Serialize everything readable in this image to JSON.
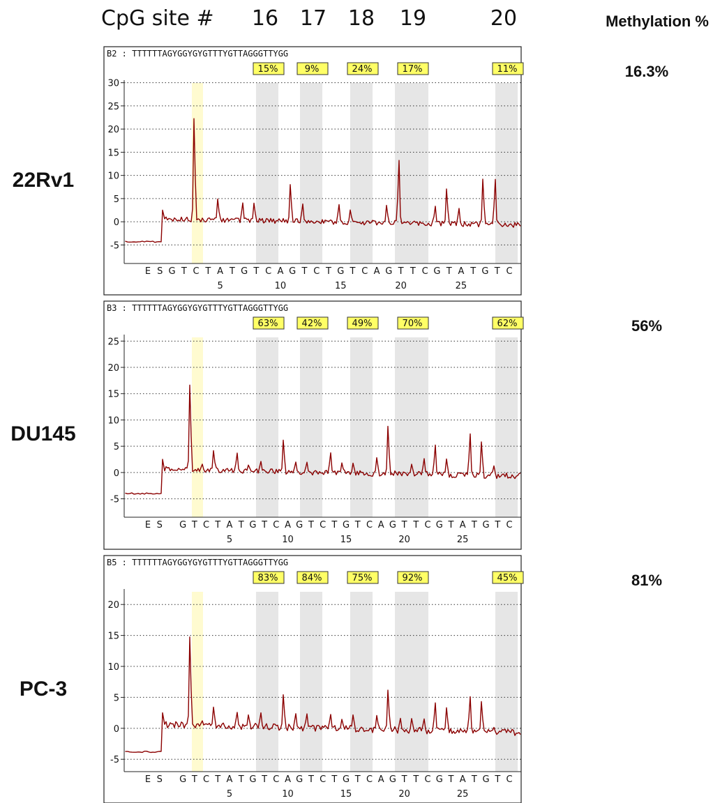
{
  "header": {
    "cpg_label": "CpG site  #",
    "sites": [
      "16",
      "17",
      "18",
      "19",
      "20"
    ],
    "methylation_title": "Methylation %"
  },
  "colors": {
    "trace": "#8b0000",
    "shade": "#e6e6e6",
    "highlight": "#fffbd0",
    "badge": "#ffff66"
  },
  "chart_data": [
    {
      "type": "line",
      "cell_line": "22Rv1",
      "well": "B2",
      "sequence": "TTTTTTAGYGGYGYGTTTYGTTAGGGTTYGG",
      "methylation_overall": "16.3%",
      "site_percents": [
        "15%",
        "9%",
        "24%",
        "17%",
        "11%"
      ],
      "ylim": [
        -9,
        31
      ],
      "yticks": [
        -5,
        0,
        5,
        10,
        15,
        20,
        25,
        30
      ],
      "dispensation": [
        "E",
        "S",
        "G",
        "T",
        "C",
        "T",
        "A",
        "T",
        "G",
        "T",
        "C",
        "A",
        "G",
        "T",
        "C",
        "T",
        "G",
        "T",
        "C",
        "A",
        "G",
        "T",
        "T",
        "C",
        "G",
        "T",
        "A",
        "T",
        "G",
        "T",
        "C"
      ],
      "position_ticks": [
        "5",
        "10",
        "15",
        "20",
        "25"
      ],
      "baseline_start": -4.3,
      "peaks": [
        0,
        2,
        0,
        0,
        29,
        0,
        6,
        0,
        5,
        5,
        0,
        0,
        10.5,
        5,
        0,
        0,
        5,
        3.5,
        0,
        0,
        5,
        18,
        0,
        0,
        5,
        10,
        4.5,
        0,
        13,
        13,
        0
      ]
    },
    {
      "type": "line",
      "cell_line": "DU145",
      "well": "B3",
      "sequence": "TTTTTTAGYGGYGYGTTTYGTTAGGGTTYGG",
      "methylation_overall": "56%",
      "site_percents": [
        "63%",
        "42%",
        "49%",
        "70%",
        "62%"
      ],
      "ylim": [
        -8.5,
        26.5
      ],
      "yticks": [
        -5,
        0,
        5,
        10,
        15,
        20,
        25
      ],
      "dispensation": [
        "E",
        "S",
        "",
        "G",
        "T",
        "C",
        "T",
        "A",
        "T",
        "G",
        "T",
        "C",
        "A",
        "G",
        "T",
        "C",
        "T",
        "G",
        "T",
        "C",
        "A",
        "G",
        "T",
        "T",
        "C",
        "G",
        "T",
        "A",
        "T",
        "G",
        "T",
        "C"
      ],
      "position_ticks": [
        "5",
        "10",
        "15",
        "20",
        "25"
      ],
      "baseline_start": -4.0,
      "peaks": [
        0,
        2.5,
        0,
        0,
        21.5,
        1.5,
        5,
        0,
        4.5,
        1.5,
        2.5,
        0,
        8,
        2.5,
        2.5,
        0,
        5,
        2.5,
        2.5,
        0,
        4,
        12,
        0,
        2.5,
        4,
        7.5,
        4,
        0,
        10.5,
        8.5,
        2.5,
        0
      ]
    },
    {
      "type": "line",
      "cell_line": "PC-3",
      "well": "B5",
      "sequence": "TTTTTTAGYGGYGYGTTTYGTTAGGGTTYGG",
      "methylation_overall": "81%",
      "site_percents": [
        "83%",
        "84%",
        "75%",
        "92%",
        "45%"
      ],
      "ylim": [
        -7,
        22.5
      ],
      "yticks": [
        -5,
        0,
        5,
        10,
        15,
        20
      ],
      "dispensation": [
        "E",
        "S",
        "",
        "G",
        "T",
        "C",
        "T",
        "A",
        "T",
        "G",
        "T",
        "C",
        "A",
        "G",
        "T",
        "C",
        "T",
        "G",
        "T",
        "C",
        "A",
        "G",
        "T",
        "T",
        "C",
        "G",
        "T",
        "A",
        "T",
        "G",
        "T",
        "C"
      ],
      "position_ticks": [
        "5",
        "10",
        "15",
        "20",
        "25"
      ],
      "baseline_start": -3.8,
      "peaks": [
        0,
        2.5,
        0,
        0,
        19,
        1,
        4,
        0,
        3,
        2.5,
        3,
        0,
        7,
        3,
        3,
        0,
        3,
        2,
        3,
        0,
        3,
        8.5,
        2.5,
        2.5,
        2.5,
        6,
        5,
        0,
        7.5,
        6.5,
        1,
        0
      ]
    }
  ]
}
